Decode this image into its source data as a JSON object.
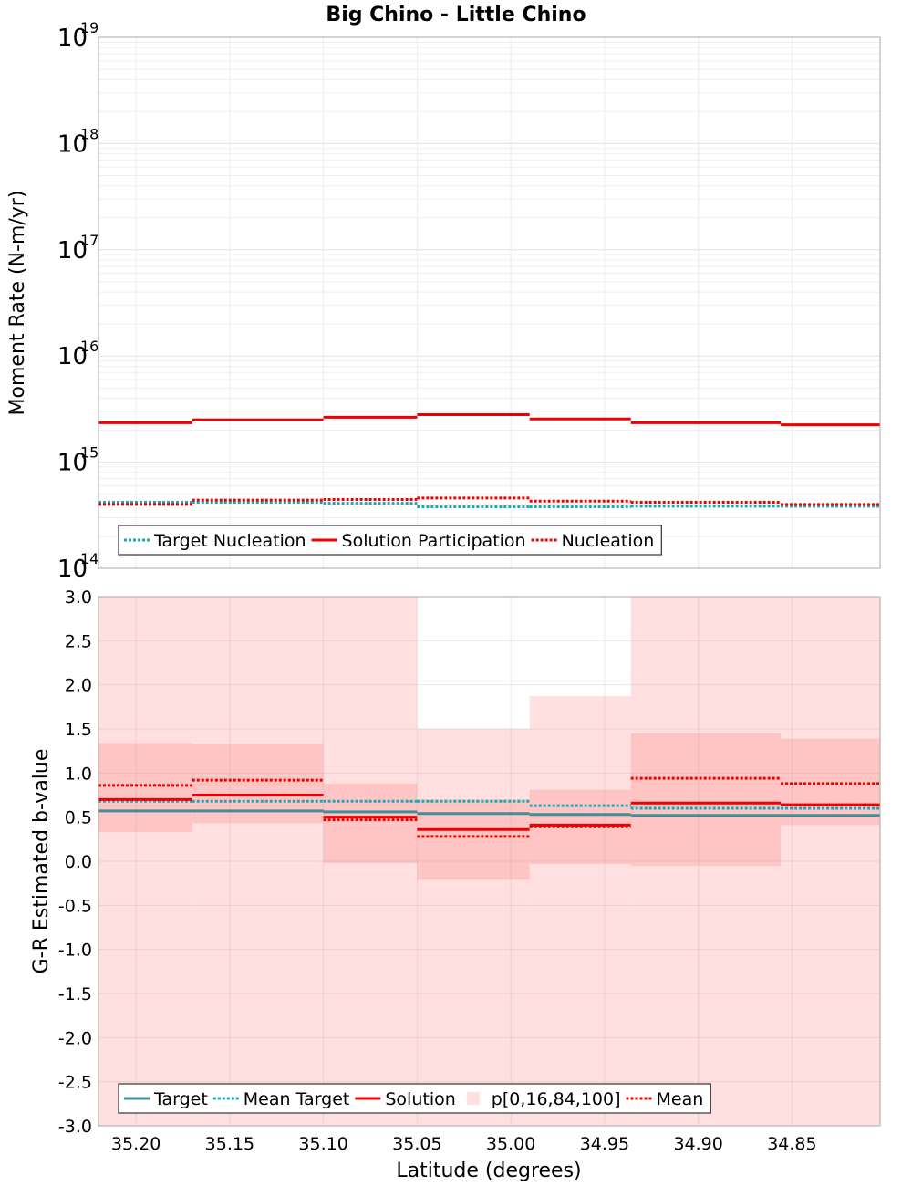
{
  "chart_data": [
    {
      "id": "moment",
      "type": "line",
      "step": true,
      "title": "Big Chino - Little Chino",
      "ylabel": "Moment Rate (N-m/yr)",
      "xlabel": "",
      "yscale": "log",
      "ylim": [
        100000000000000.0,
        1e+19
      ],
      "y_tick_exponents": [
        14,
        15,
        16,
        17,
        18,
        19
      ],
      "y_tick_base": "10",
      "xlim": [
        35.22,
        34.803
      ],
      "bin_edges": [
        35.22,
        35.17,
        35.1,
        35.05,
        34.99,
        34.936,
        34.856,
        34.803
      ],
      "series": [
        {
          "name": "Target Nucleation",
          "color": "#1aa9b3",
          "style": "dotted",
          "width": 3,
          "values": [
            420000000000000.0,
            420000000000000.0,
            410000000000000.0,
            380000000000000.0,
            380000000000000.0,
            385000000000000.0,
            385000000000000.0
          ]
        },
        {
          "name": "Solution Participation",
          "color": "#ee0000",
          "style": "solid",
          "width": 3,
          "values": [
            2350000000000000.0,
            2500000000000000.0,
            2650000000000000.0,
            2800000000000000.0,
            2550000000000000.0,
            2350000000000000.0,
            2250000000000000.0
          ]
        },
        {
          "name": "Nucleation",
          "color": "#ee0000",
          "style": "dotted",
          "width": 3,
          "values": [
            400000000000000.0,
            440000000000000.0,
            445000000000000.0,
            460000000000000.0,
            430000000000000.0,
            420000000000000.0,
            400000000000000.0
          ]
        }
      ],
      "legend": {
        "position": "lower-left",
        "entries": [
          "Target Nucleation",
          "Solution Participation",
          "Nucleation"
        ]
      }
    },
    {
      "id": "bvalue",
      "type": "line",
      "step": true,
      "title": "",
      "ylabel": "G-R Estimated b-value",
      "xlabel": "Latitude (degrees)",
      "yscale": "linear",
      "ylim": [
        -3.0,
        3.0
      ],
      "y_ticks": [
        "3.0",
        "2.5",
        "2.0",
        "1.5",
        "1.0",
        "0.5",
        "0.0",
        "-0.5",
        "-1.0",
        "-1.5",
        "-2.0",
        "-2.5",
        "-3.0"
      ],
      "xlim": [
        35.22,
        34.803
      ],
      "x_ticks": [
        "35.20",
        "35.15",
        "35.10",
        "35.05",
        "35.00",
        "34.95",
        "34.90",
        "34.85"
      ],
      "bin_edges": [
        35.22,
        35.17,
        35.1,
        35.05,
        34.99,
        34.936,
        34.856,
        34.803
      ],
      "band_outer": {
        "name": "p[0,16,84,100]",
        "color": "#ffdfdf",
        "lower": [
          -3.0,
          -3.0,
          -3.0,
          -3.0,
          -3.0,
          -3.0,
          -3.0
        ],
        "upper": [
          3.0,
          3.0,
          3.0,
          1.5,
          1.87,
          3.0,
          3.0
        ]
      },
      "band_inner": {
        "color": "#ffc4c4",
        "lower": [
          0.33,
          0.43,
          -0.02,
          -0.21,
          -0.03,
          -0.05,
          0.41
        ],
        "upper": [
          1.34,
          1.33,
          0.88,
          0.7,
          0.81,
          1.45,
          1.39
        ]
      },
      "series": [
        {
          "name": "Target",
          "color": "#3f8f99",
          "style": "solid",
          "width": 3,
          "values": [
            0.57,
            0.57,
            0.56,
            0.54,
            0.53,
            0.52,
            0.52
          ]
        },
        {
          "name": "Mean Target",
          "color": "#1aa9b3",
          "style": "dotted",
          "width": 3,
          "values": [
            0.68,
            0.68,
            0.68,
            0.68,
            0.63,
            0.6,
            0.6
          ]
        },
        {
          "name": "Solution",
          "color": "#ee0000",
          "style": "solid",
          "width": 3,
          "values": [
            0.7,
            0.75,
            0.5,
            0.36,
            0.41,
            0.66,
            0.64
          ]
        },
        {
          "name": "Mean",
          "color": "#ee0000",
          "style": "dotted",
          "width": 3,
          "values": [
            0.86,
            0.92,
            0.47,
            0.28,
            0.39,
            0.94,
            0.88
          ]
        }
      ],
      "legend": {
        "position": "lower-left",
        "entries": [
          "Target",
          "Mean Target",
          "Solution",
          "p[0,16,84,100]",
          "Mean"
        ]
      }
    }
  ]
}
